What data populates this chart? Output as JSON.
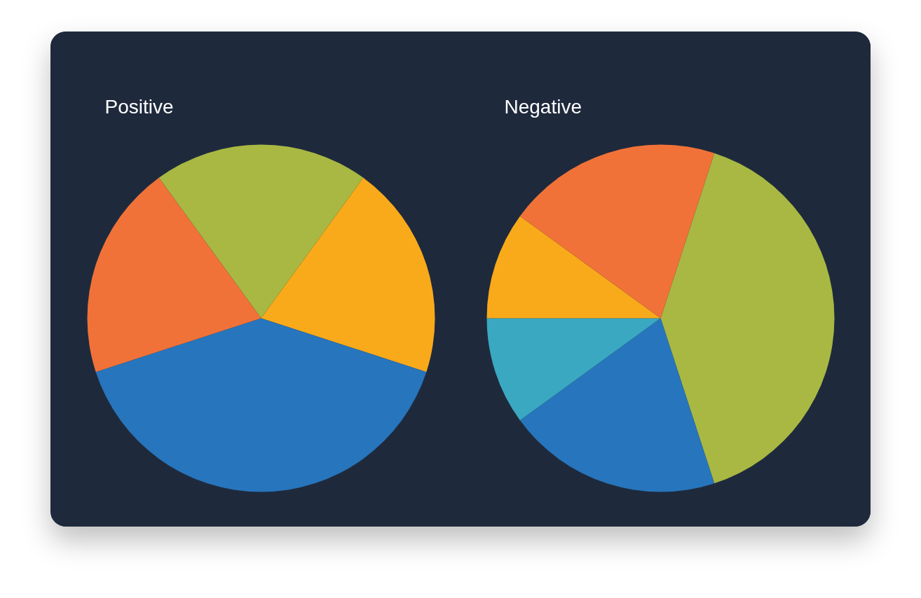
{
  "chart_data": [
    {
      "type": "pie",
      "title": "Positive",
      "categories": [
        null,
        null,
        null,
        null
      ],
      "values": [
        20,
        20,
        40,
        20
      ],
      "colors": [
        "#a8b843",
        "#f9aa1a",
        "#2775bc",
        "#f17238"
      ]
    },
    {
      "type": "pie",
      "title": "Negative",
      "categories": [
        null,
        null,
        null,
        null,
        null
      ],
      "values": [
        40,
        20,
        10,
        10,
        20
      ],
      "colors": [
        "#a8b843",
        "#2775bc",
        "#3aa8c1",
        "#f9aa1a",
        "#f17238"
      ]
    }
  ]
}
